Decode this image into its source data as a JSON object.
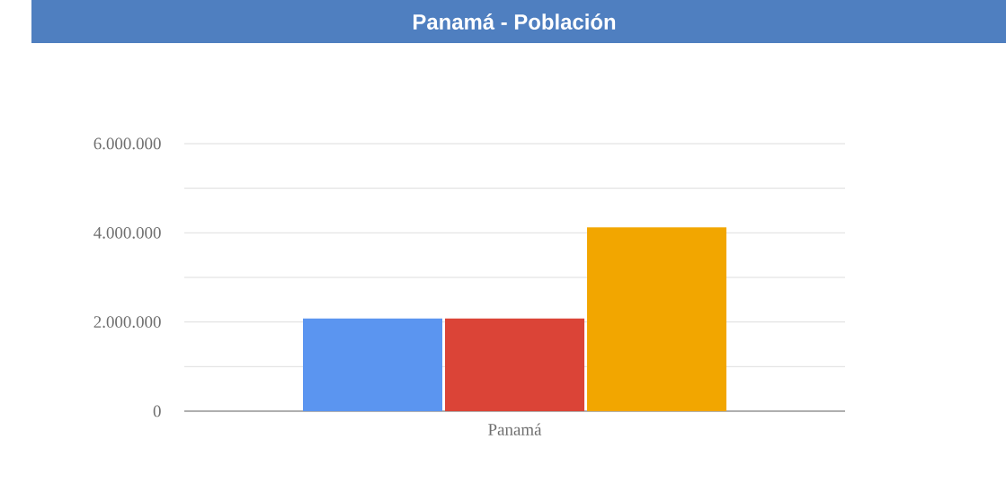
{
  "chart_data": {
    "type": "bar",
    "title": "Panamá - Población",
    "categories": [
      "Panamá"
    ],
    "series": [
      {
        "color": "#5b95f0",
        "values": [
          2080000
        ]
      },
      {
        "color": "#db4437",
        "values": [
          2080000
        ]
      },
      {
        "color": "#f2a600",
        "values": [
          4120000
        ]
      }
    ],
    "ylim": [
      0,
      6000000
    ],
    "yticks": [
      0,
      {
        "value": 1000000,
        "label": null
      },
      {
        "value": 2000000,
        "label": "2.000.000"
      },
      {
        "value": 3000000,
        "label": null
      },
      {
        "value": 4000000,
        "label": "4.000.000"
      },
      {
        "value": 5000000,
        "label": null
      },
      {
        "value": 6000000,
        "label": "6.000.000"
      }
    ],
    "grid": "y"
  }
}
